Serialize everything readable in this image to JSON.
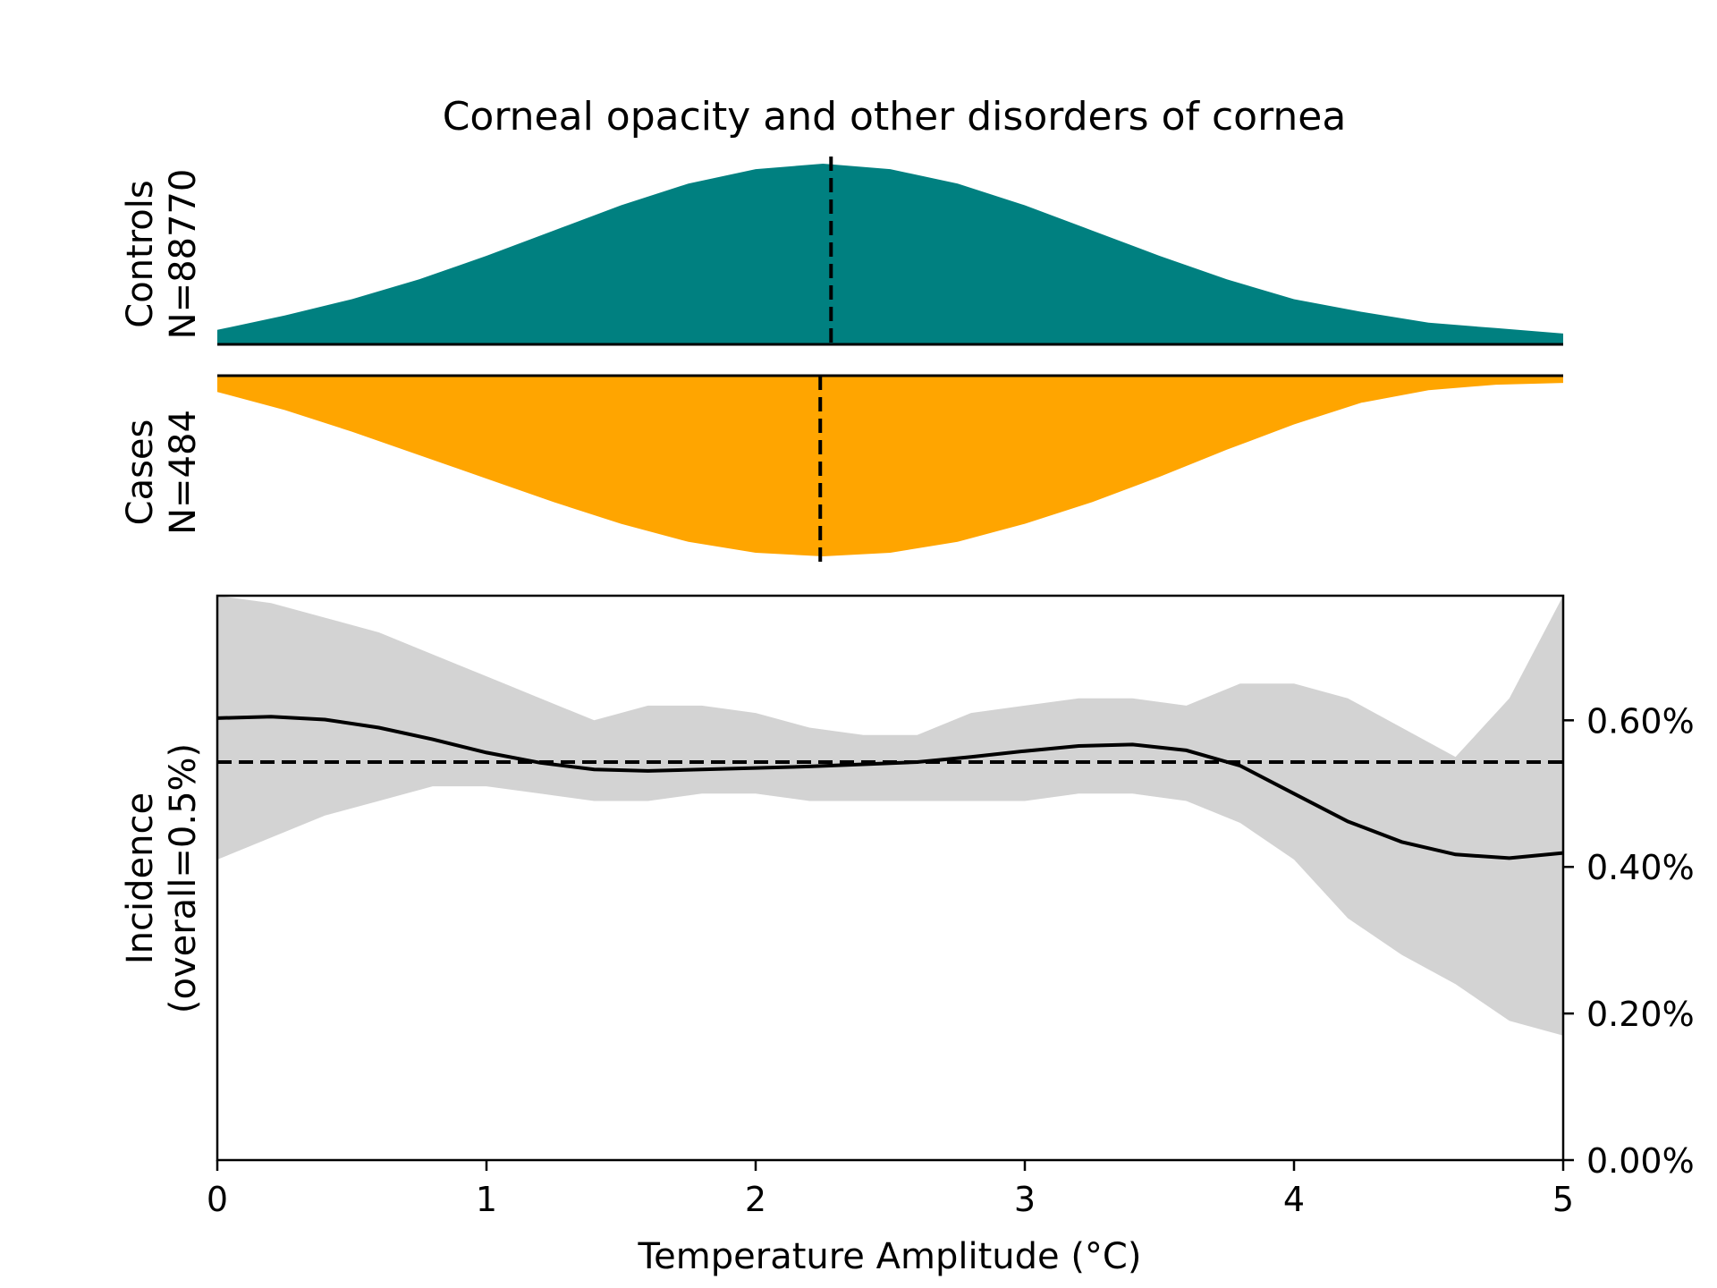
{
  "chart_data": {
    "type": "area",
    "title": "Corneal opacity and other disorders of cornea",
    "xlabel": "Temperature Amplitude (°C)",
    "xlim": [
      0,
      5
    ],
    "x_ticks": [
      0,
      1,
      2,
      3,
      4,
      5
    ],
    "controls": {
      "label_line1": "Controls",
      "label_line2": "N=88770",
      "color": "#008080",
      "median_x": 2.28,
      "x": [
        0,
        0.25,
        0.5,
        0.75,
        1,
        1.25,
        1.5,
        1.75,
        2,
        2.25,
        2.5,
        2.75,
        3,
        3.25,
        3.5,
        3.75,
        4,
        4.25,
        4.5,
        4.75,
        5
      ],
      "density": [
        0.08,
        0.16,
        0.25,
        0.36,
        0.49,
        0.63,
        0.77,
        0.89,
        0.97,
        1.0,
        0.97,
        0.89,
        0.77,
        0.63,
        0.49,
        0.36,
        0.25,
        0.18,
        0.12,
        0.09,
        0.06
      ]
    },
    "cases": {
      "label_line1": "Cases",
      "label_line2": "N=484",
      "color": "#FFA500",
      "median_x": 2.24,
      "x": [
        0,
        0.25,
        0.5,
        0.75,
        1,
        1.25,
        1.5,
        1.75,
        2,
        2.25,
        2.5,
        2.75,
        3,
        3.25,
        3.5,
        3.75,
        4,
        4.25,
        4.5,
        4.75,
        5
      ],
      "density": [
        0.09,
        0.19,
        0.31,
        0.44,
        0.57,
        0.7,
        0.82,
        0.92,
        0.98,
        1.0,
        0.98,
        0.92,
        0.82,
        0.7,
        0.56,
        0.41,
        0.27,
        0.15,
        0.08,
        0.05,
        0.04
      ]
    },
    "incidence": {
      "ylabel_line1": "Incidence",
      "ylabel_line2": "(overall=0.5%)",
      "ylim": [
        0,
        0.0077
      ],
      "y_ticks": [
        0,
        0.002,
        0.004,
        0.006
      ],
      "y_tick_labels": [
        "0.00%",
        "0.20%",
        "0.40%",
        "0.60%"
      ],
      "overall": 0.00543,
      "x": [
        0,
        0.2,
        0.4,
        0.6,
        0.8,
        1.0,
        1.2,
        1.4,
        1.6,
        1.8,
        2.0,
        2.2,
        2.4,
        2.6,
        2.8,
        3.0,
        3.2,
        3.4,
        3.6,
        3.8,
        4.0,
        4.2,
        4.4,
        4.6,
        4.8,
        5.0
      ],
      "mean": [
        0.00603,
        0.00605,
        0.00601,
        0.0059,
        0.00574,
        0.00556,
        0.00542,
        0.00533,
        0.00531,
        0.00533,
        0.00535,
        0.00537,
        0.0054,
        0.00543,
        0.0055,
        0.00558,
        0.00565,
        0.00567,
        0.00559,
        0.00538,
        0.005,
        0.00462,
        0.00434,
        0.00417,
        0.00412,
        0.00419
      ],
      "upper": [
        0.0077,
        0.0076,
        0.0074,
        0.0072,
        0.0069,
        0.0066,
        0.0063,
        0.006,
        0.0062,
        0.0062,
        0.0061,
        0.0059,
        0.0058,
        0.0058,
        0.0061,
        0.0062,
        0.0063,
        0.0063,
        0.0062,
        0.0065,
        0.0065,
        0.0063,
        0.0059,
        0.0055,
        0.0063,
        0.0077
      ],
      "lower": [
        0.0041,
        0.0044,
        0.0047,
        0.0049,
        0.0051,
        0.0051,
        0.005,
        0.0049,
        0.0049,
        0.005,
        0.005,
        0.0049,
        0.0049,
        0.0049,
        0.0049,
        0.0049,
        0.005,
        0.005,
        0.0049,
        0.0046,
        0.0041,
        0.0033,
        0.0028,
        0.0024,
        0.0019,
        0.0017
      ]
    }
  }
}
